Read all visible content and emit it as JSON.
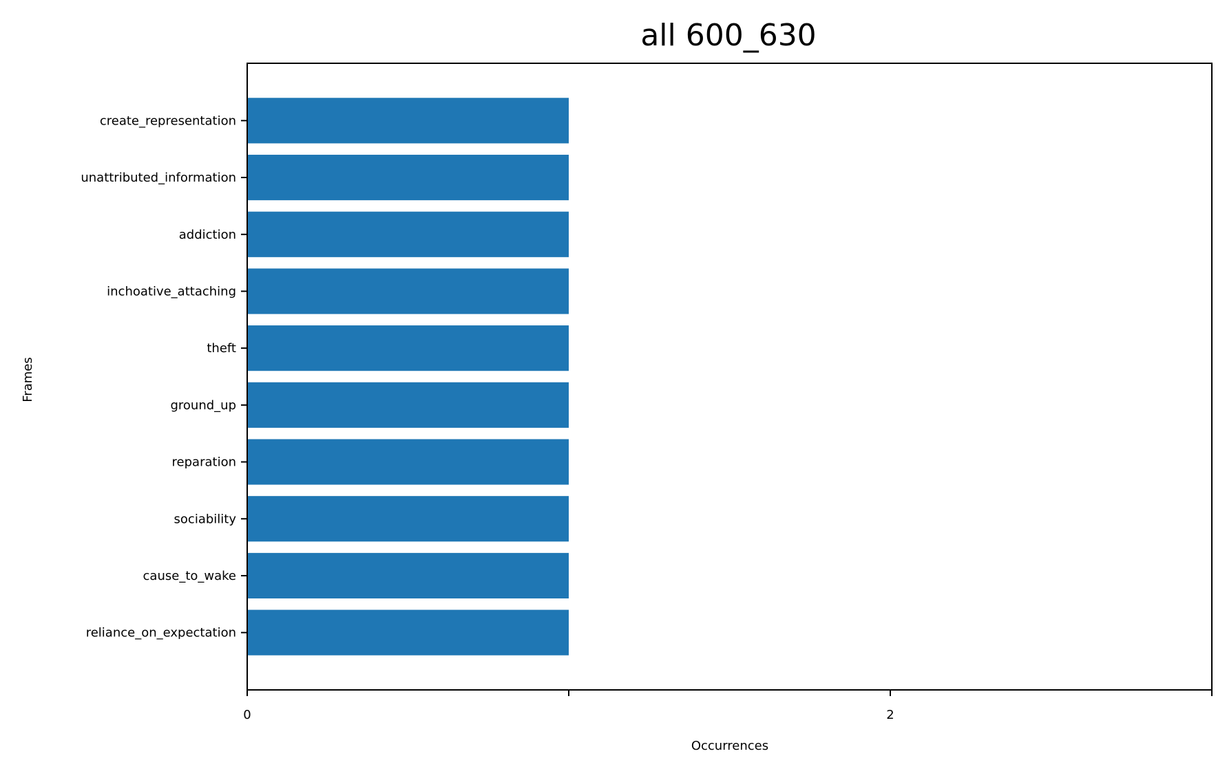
{
  "chart_data": {
    "type": "bar",
    "orientation": "horizontal",
    "title": "all 600_630",
    "xlabel": "Occurrences",
    "ylabel": "Frames",
    "categories": [
      "create_representation",
      "unattributed_information",
      "addiction",
      "inchoative_attaching",
      "theft",
      "ground_up",
      "reparation",
      "sociability",
      "cause_to_wake",
      "reliance_on_expectation"
    ],
    "values": [
      1,
      1,
      1,
      1,
      1,
      1,
      1,
      1,
      1,
      1
    ],
    "xlim": [
      0,
      3
    ],
    "xticks": [
      0,
      1,
      2,
      3
    ],
    "xtick_labels": [
      "0",
      "",
      "2",
      ""
    ],
    "bar_color": "#1f77b4",
    "grid": false,
    "legend": false
  }
}
